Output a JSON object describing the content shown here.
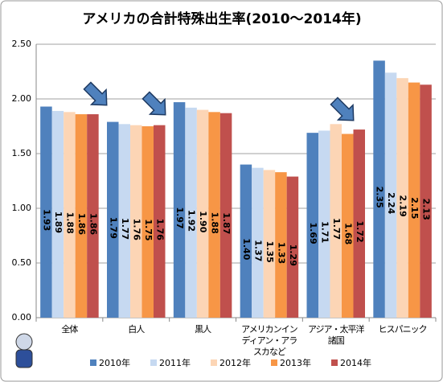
{
  "chart_data": {
    "type": "bar",
    "title": "アメリカの合計特殊出生率(2010～2014年)",
    "categories": [
      "全体",
      "白人",
      "黒人",
      "アメリカンインディアン・アラスカなど",
      "アジア・太平洋諸国",
      "ヒスパニック"
    ],
    "series": [
      {
        "name": "2010年",
        "color": "#4f81bd",
        "values": [
          1.93,
          1.79,
          1.97,
          1.4,
          1.69,
          2.35
        ],
        "value_labels": [
          "1.93",
          "1.79",
          "1.97",
          "1.40",
          "1.69",
          "2.35"
        ]
      },
      {
        "name": "2011年",
        "color": "#c6d9f1",
        "values": [
          1.89,
          1.77,
          1.92,
          1.37,
          1.71,
          2.24
        ],
        "value_labels": [
          "1.89",
          "1.77",
          "1.92",
          "1.37",
          "1.71",
          "2.24"
        ]
      },
      {
        "name": "2012年",
        "color": "#fcd5b5",
        "values": [
          1.88,
          1.76,
          1.9,
          1.35,
          1.77,
          2.19
        ],
        "value_labels": [
          "1.88",
          "1.76",
          "1.90",
          "1.35",
          "1.77",
          "2.19"
        ]
      },
      {
        "name": "2013年",
        "color": "#f79646",
        "values": [
          1.86,
          1.75,
          1.88,
          1.33,
          1.68,
          2.15
        ],
        "value_labels": [
          "1.86",
          "1.75",
          "1.88",
          "1.33",
          "1.68",
          "2.15"
        ]
      },
      {
        "name": "2014年",
        "color": "#c0504d",
        "values": [
          1.86,
          1.76,
          1.87,
          1.29,
          1.72,
          2.13
        ],
        "value_labels": [
          "1.86",
          "1.76",
          "1.87",
          "1.29",
          "1.72",
          "2.13"
        ]
      }
    ],
    "ylim": [
      0,
      2.5
    ],
    "yticks": [
      {
        "value": 0,
        "label": "0.00"
      },
      {
        "value": 0.5,
        "label": "0.50"
      },
      {
        "value": 1,
        "label": "1.00"
      },
      {
        "value": 1.5,
        "label": "1.50"
      },
      {
        "value": 2,
        "label": "2.00"
      },
      {
        "value": 2.5,
        "label": "2.50"
      }
    ],
    "grid": true
  }
}
